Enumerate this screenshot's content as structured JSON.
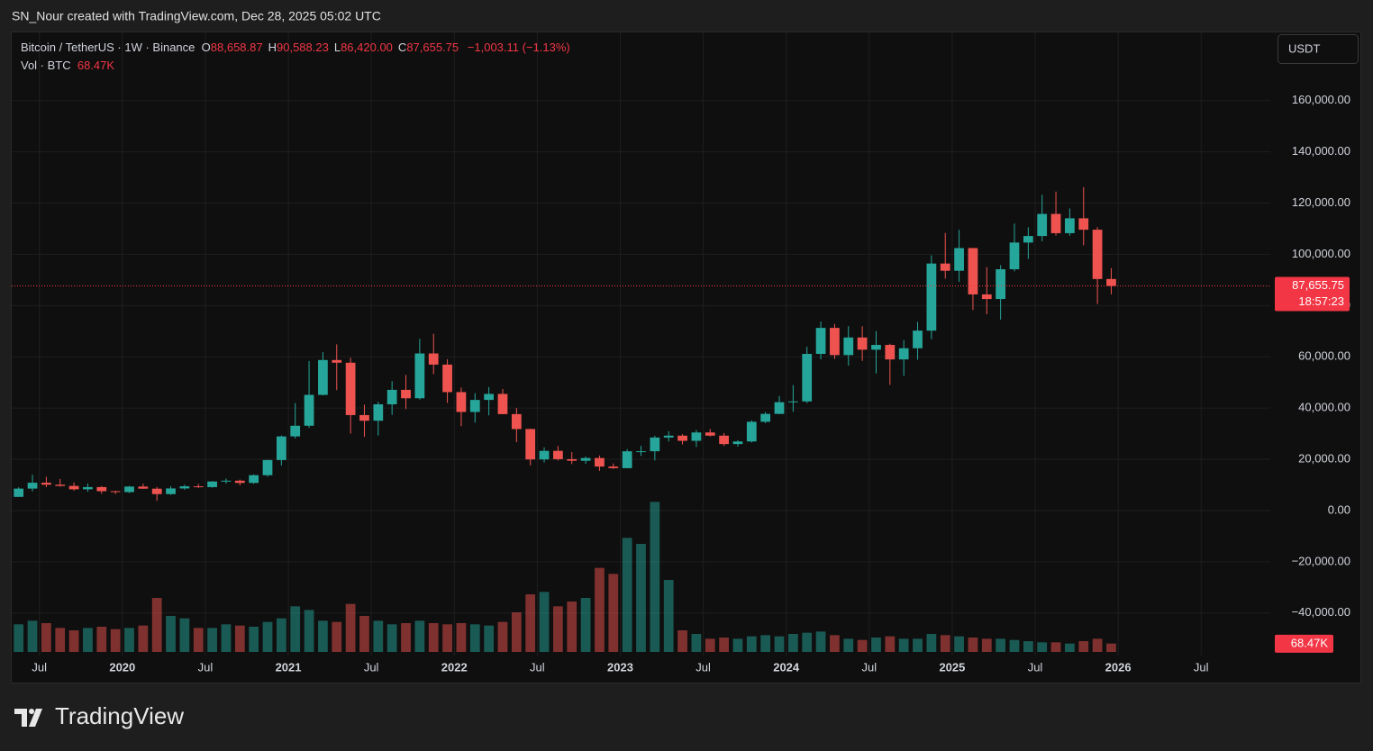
{
  "watermark": "SN_Nour created with TradingView.com, Dec 28, 2025 05:02 UTC",
  "brand": "TradingView",
  "currency_button": "USDT",
  "chart_data": {
    "type": "candlestick",
    "symbol": "Bitcoin / TetherUS · 1W · Binance",
    "ohlc_legend": [
      {
        "key": "O",
        "value": "88,658.87"
      },
      {
        "key": "H",
        "value": "90,588.23"
      },
      {
        "key": "L",
        "value": "86,420.00"
      },
      {
        "key": "C",
        "value": "87,655.75"
      }
    ],
    "change": "−1,003.11 (−1.13%)",
    "up_color": "#26a69a",
    "down_color": "#ef5350",
    "x": [
      "2019-05",
      "2019-06",
      "2019-07",
      "2019-08",
      "2019-09",
      "2019-10",
      "2019-11",
      "2019-12",
      "2020-01",
      "2020-02",
      "2020-03",
      "2020-04",
      "2020-05",
      "2020-06",
      "2020-07",
      "2020-08",
      "2020-09",
      "2020-10",
      "2020-11",
      "2020-12",
      "2021-01",
      "2021-02",
      "2021-03",
      "2021-04",
      "2021-05",
      "2021-06",
      "2021-07",
      "2021-08",
      "2021-09",
      "2021-10",
      "2021-11",
      "2021-12",
      "2022-01",
      "2022-02",
      "2022-03",
      "2022-04",
      "2022-05",
      "2022-06",
      "2022-07",
      "2022-08",
      "2022-09",
      "2022-10",
      "2022-11",
      "2022-12",
      "2023-01",
      "2023-02",
      "2023-03",
      "2023-04",
      "2023-05",
      "2023-06",
      "2023-07",
      "2023-08",
      "2023-09",
      "2023-10",
      "2023-11",
      "2023-12",
      "2024-01",
      "2024-02",
      "2024-03",
      "2024-04",
      "2024-05",
      "2024-06",
      "2024-07",
      "2024-08",
      "2024-09",
      "2024-10",
      "2024-11",
      "2024-12",
      "2025-01",
      "2025-02",
      "2025-03",
      "2025-04",
      "2025-05",
      "2025-06",
      "2025-07",
      "2025-08",
      "2025-09",
      "2025-10",
      "2025-11",
      "2025-12"
    ],
    "open": [
      5320,
      8555,
      10855,
      10085,
      9600,
      8290,
      9150,
      7540,
      7195,
      9350,
      8525,
      6410,
      8620,
      9450,
      9135,
      11335,
      11650,
      10775,
      13790,
      19700,
      28925,
      33090,
      45135,
      58740,
      57695,
      37255,
      35045,
      41460,
      47100,
      43825,
      61300,
      56950,
      46215,
      38465,
      43160,
      45510,
      37630,
      31800,
      19940,
      23290,
      20050,
      19420,
      20490,
      17165,
      16540,
      23125,
      23140,
      28480,
      29230,
      27210,
      30470,
      29230,
      25940,
      26960,
      34640,
      37720,
      42280,
      42580,
      61130,
      71280,
      60670,
      67530,
      62770,
      64630,
      58970,
      63330,
      70215,
      96400,
      93575,
      102430,
      84350,
      82550,
      94170,
      104590,
      107135,
      115760,
      108250,
      114050,
      109600,
      90360
    ],
    "high": [
      9070,
      13970,
      13200,
      12330,
      10950,
      10540,
      9510,
      7750,
      9580,
      10500,
      9190,
      9470,
      10070,
      10380,
      11450,
      12470,
      12070,
      14100,
      19860,
      29300,
      41950,
      58350,
      61780,
      64850,
      59600,
      41330,
      42450,
      50500,
      52920,
      67000,
      69000,
      59050,
      47990,
      45820,
      48190,
      47440,
      40020,
      31980,
      24670,
      25210,
      22800,
      21085,
      21480,
      18390,
      23960,
      25250,
      29190,
      31000,
      29820,
      31430,
      31800,
      30240,
      27480,
      35200,
      38450,
      44730,
      48970,
      63910,
      73780,
      72800,
      71980,
      71950,
      70080,
      65100,
      66500,
      73620,
      99590,
      108350,
      109590,
      102500,
      95000,
      95760,
      111980,
      110530,
      123220,
      124475,
      117900,
      126200,
      110600,
      94590
    ],
    "low": [
      5300,
      7440,
      9110,
      9320,
      7710,
      7300,
      6515,
      6430,
      6870,
      8450,
      3780,
      6150,
      8100,
      8830,
      8900,
      10525,
      9820,
      10370,
      13200,
      17570,
      28130,
      32300,
      44950,
      47000,
      30000,
      28800,
      29280,
      37330,
      39600,
      43290,
      53250,
      42000,
      32920,
      34320,
      37150,
      37580,
      26700,
      17620,
      18780,
      19520,
      18125,
      18190,
      15475,
      16255,
      16500,
      21350,
      19550,
      26940,
      25810,
      24800,
      28860,
      25170,
      24900,
      26540,
      34100,
      37620,
      38555,
      41880,
      59000,
      59190,
      56550,
      58400,
      53485,
      49000,
      52550,
      58860,
      66830,
      90500,
      89260,
      78260,
      76600,
      74500,
      93350,
      98200,
      105100,
      107300,
      107270,
      103530,
      80600,
      84400
    ],
    "close": [
      8555,
      10855,
      10085,
      9600,
      8290,
      9150,
      7540,
      7195,
      9350,
      8525,
      6410,
      8620,
      9450,
      9135,
      11335,
      11650,
      10775,
      13790,
      19700,
      28925,
      33090,
      45135,
      58740,
      57695,
      37255,
      35045,
      41460,
      47100,
      43825,
      61300,
      56950,
      46215,
      38465,
      43160,
      45510,
      37630,
      31800,
      19940,
      23290,
      20050,
      19420,
      20490,
      17165,
      16540,
      23125,
      23140,
      28480,
      29230,
      27210,
      30470,
      29230,
      25940,
      26960,
      34640,
      37720,
      42280,
      42580,
      61130,
      71280,
      60670,
      67530,
      62770,
      64630,
      58970,
      63330,
      70215,
      96400,
      93575,
      102430,
      84350,
      82550,
      94170,
      104590,
      107135,
      115760,
      108250,
      114050,
      109600,
      90360,
      87655.75
    ],
    "last_price": {
      "value": 87655.75,
      "label": "87,655.75"
    },
    "countdown": "18:57:23",
    "volume": {
      "name": "Vol · BTC",
      "values": [
        230000,
        260000,
        240000,
        200000,
        180000,
        200000,
        210000,
        190000,
        200000,
        220000,
        450000,
        300000,
        280000,
        200000,
        200000,
        230000,
        220000,
        210000,
        250000,
        280000,
        380000,
        350000,
        260000,
        250000,
        400000,
        300000,
        260000,
        230000,
        240000,
        260000,
        240000,
        230000,
        240000,
        230000,
        220000,
        250000,
        330000,
        480000,
        500000,
        380000,
        420000,
        450000,
        700000,
        650000,
        950000,
        900000,
        1250000,
        600000,
        180000,
        150000,
        110000,
        120000,
        110000,
        130000,
        140000,
        130000,
        150000,
        160000,
        170000,
        140000,
        110000,
        100000,
        120000,
        130000,
        110000,
        110000,
        150000,
        140000,
        130000,
        120000,
        110000,
        110000,
        100000,
        90000,
        80000,
        80000,
        70000,
        90000,
        110000,
        70000
      ],
      "last": {
        "value": 68470,
        "label": "68.47K"
      },
      "lim": [
        0,
        1500000
      ]
    },
    "xlim": [
      "2019-05",
      "2026-12"
    ],
    "xticks": [
      {
        "value": "2019-07",
        "label": "Jul"
      },
      {
        "value": "2020-01",
        "label": "2020"
      },
      {
        "value": "2020-07",
        "label": "Jul"
      },
      {
        "value": "2021-01",
        "label": "2021"
      },
      {
        "value": "2021-07",
        "label": "Jul"
      },
      {
        "value": "2022-01",
        "label": "2022"
      },
      {
        "value": "2022-07",
        "label": "Jul"
      },
      {
        "value": "2023-01",
        "label": "2023"
      },
      {
        "value": "2023-07",
        "label": "Jul"
      },
      {
        "value": "2024-01",
        "label": "2024"
      },
      {
        "value": "2024-07",
        "label": "Jul"
      },
      {
        "value": "2025-01",
        "label": "2025"
      },
      {
        "value": "2025-07",
        "label": "Jul"
      },
      {
        "value": "2026-01",
        "label": "2026"
      },
      {
        "value": "2026-07",
        "label": "Jul"
      }
    ],
    "ylim": [
      -56600,
      186600
    ],
    "yticks": [
      {
        "value": -40000,
        "label": "−40,000.00"
      },
      {
        "value": -20000,
        "label": "−20,000.00"
      },
      {
        "value": 0,
        "label": "0.00"
      },
      {
        "value": 20000,
        "label": "20,000.00"
      },
      {
        "value": 40000,
        "label": "40,000.00"
      },
      {
        "value": 60000,
        "label": "60,000.00"
      },
      {
        "value": 80000,
        "label": "80,000.00"
      },
      {
        "value": 100000,
        "label": "100,000.00"
      },
      {
        "value": 120000,
        "label": "120,000.00"
      },
      {
        "value": 140000,
        "label": "140,000.00"
      },
      {
        "value": 160000,
        "label": "160,000.00"
      }
    ],
    "grid": true
  }
}
